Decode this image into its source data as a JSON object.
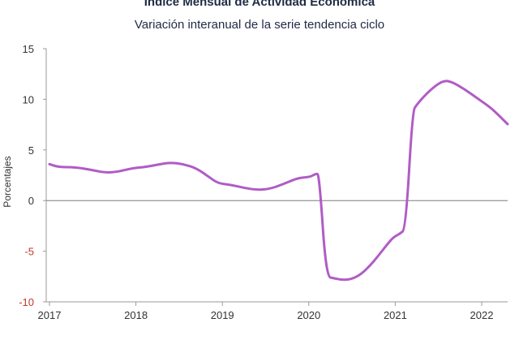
{
  "chart_data": {
    "type": "line",
    "title": "Índice Mensual de  Actividad Económica",
    "subtitle": "Variación interanual de la serie tendencia ciclo",
    "ylabel": "Porcentajes",
    "xlabel": "",
    "ylim": [
      -10,
      15
    ],
    "yticks": [
      "15",
      "10",
      "5",
      "0",
      "-5",
      "-10"
    ],
    "xlim": [
      2017,
      2022.33
    ],
    "xticks": [
      "2017",
      "2018",
      "2019",
      "2020",
      "2021",
      "2022"
    ],
    "grid": false,
    "line_color": "#b05cc6",
    "zero_line_color": "#7f7f7f",
    "negative_tick_color": "#c0392b",
    "series": [
      {
        "values": [
          [
            2017.0,
            3.6
          ],
          [
            2017.1,
            3.3
          ],
          [
            2017.3,
            3.3
          ],
          [
            2017.5,
            3.0
          ],
          [
            2017.65,
            2.75
          ],
          [
            2017.8,
            2.85
          ],
          [
            2017.95,
            3.2
          ],
          [
            2018.1,
            3.3
          ],
          [
            2018.25,
            3.55
          ],
          [
            2018.4,
            3.75
          ],
          [
            2018.55,
            3.6
          ],
          [
            2018.7,
            3.2
          ],
          [
            2018.85,
            2.3
          ],
          [
            2018.95,
            1.7
          ],
          [
            2019.1,
            1.55
          ],
          [
            2019.25,
            1.25
          ],
          [
            2019.4,
            1.05
          ],
          [
            2019.55,
            1.15
          ],
          [
            2019.7,
            1.6
          ],
          [
            2019.85,
            2.15
          ],
          [
            2019.95,
            2.3
          ],
          [
            2020.02,
            2.35
          ],
          [
            2020.08,
            2.65
          ],
          [
            2020.12,
            2.6
          ],
          [
            2020.2,
            -7.5
          ],
          [
            2020.3,
            -7.7
          ],
          [
            2020.4,
            -7.85
          ],
          [
            2020.5,
            -7.75
          ],
          [
            2020.6,
            -7.3
          ],
          [
            2020.7,
            -6.5
          ],
          [
            2020.8,
            -5.5
          ],
          [
            2020.9,
            -4.4
          ],
          [
            2020.98,
            -3.6
          ],
          [
            2021.05,
            -3.3
          ],
          [
            2021.12,
            -2.8
          ],
          [
            2021.2,
            8.8
          ],
          [
            2021.25,
            9.5
          ],
          [
            2021.4,
            10.9
          ],
          [
            2021.55,
            11.85
          ],
          [
            2021.65,
            11.75
          ],
          [
            2021.8,
            11.0
          ],
          [
            2021.95,
            10.1
          ],
          [
            2022.1,
            9.2
          ],
          [
            2022.2,
            8.4
          ],
          [
            2022.3,
            7.55
          ]
        ]
      }
    ]
  }
}
